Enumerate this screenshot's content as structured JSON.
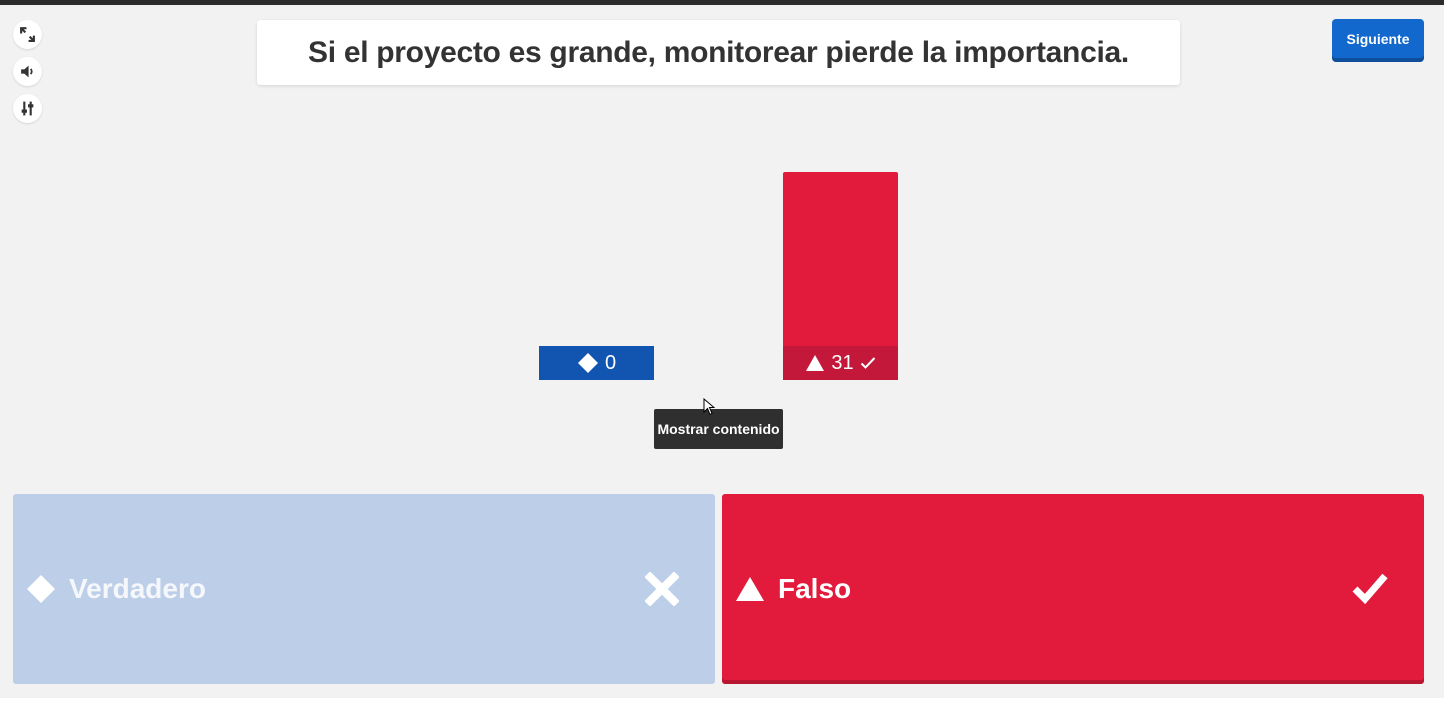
{
  "question": {
    "text": "Si el proyecto es grande, monitorear pierde la importancia."
  },
  "toolbar": {
    "next_label": "Siguiente",
    "icons": [
      "fullscreen-icon",
      "volume-icon",
      "settings-sliders-icon"
    ]
  },
  "results": {
    "bars": [
      {
        "shape": "diamond",
        "count": "0",
        "color": "#1155b0",
        "correct": false
      },
      {
        "shape": "triangle",
        "count": "31",
        "color": "#e21b3c",
        "correct": true
      }
    ]
  },
  "tooltip": {
    "text": "Mostrar contenido"
  },
  "answers": [
    {
      "shape": "diamond",
      "label": "Verdadero",
      "color": "#bccee8",
      "correct": false
    },
    {
      "shape": "triangle",
      "label": "Falso",
      "color": "#e21b3c",
      "correct": true
    }
  ],
  "colors": {
    "background": "#f2f2f2",
    "accent_blue": "#1368ce",
    "answer_red": "#e21b3c"
  }
}
